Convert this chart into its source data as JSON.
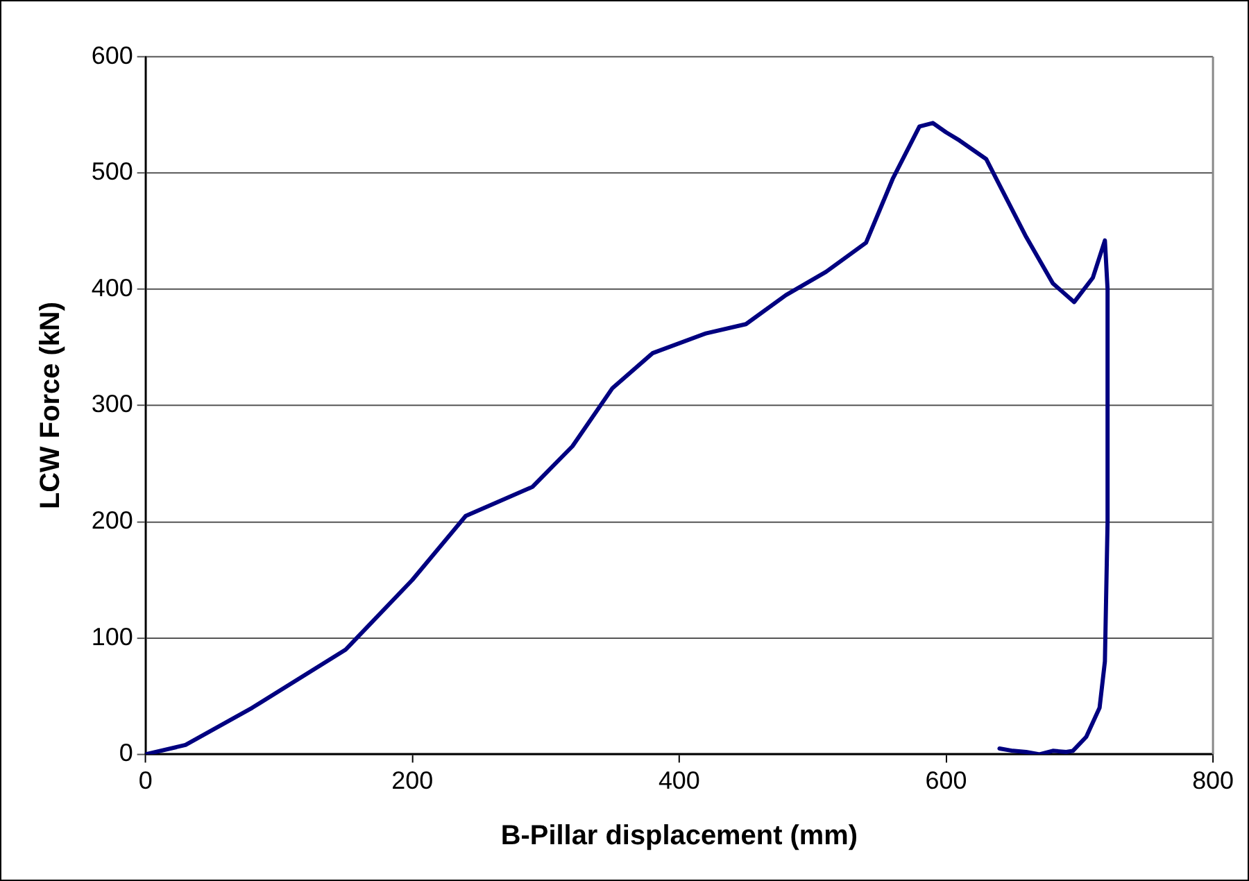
{
  "chart_data": {
    "type": "line",
    "xlabel": "B-Pillar displacement (mm)",
    "ylabel": "LCW Force (kN)",
    "xlim": [
      0,
      800
    ],
    "xticks": [
      0,
      200,
      400,
      600,
      800
    ],
    "ylim": [
      0,
      600
    ],
    "yticks": [
      0,
      100,
      200,
      300,
      400,
      500,
      600
    ],
    "grid": "y",
    "legend": false,
    "marker": "none",
    "line_style": "solid",
    "series": [
      {
        "color": "#000080",
        "x": [
          0,
          30,
          80,
          150,
          200,
          240,
          260,
          290,
          320,
          350,
          380,
          420,
          450,
          480,
          510,
          540,
          560,
          580,
          590,
          600,
          610,
          630,
          660,
          680,
          696,
          710,
          719,
          721,
          721,
          719,
          715,
          705,
          695,
          690,
          680,
          670,
          660,
          650,
          640
        ],
        "values": [
          0,
          8,
          40,
          90,
          150,
          205,
          215,
          230,
          265,
          315,
          345,
          362,
          370,
          395,
          415,
          440,
          495,
          540,
          543,
          535,
          528,
          512,
          445,
          405,
          389,
          410,
          442,
          400,
          200,
          80,
          40,
          15,
          3,
          2,
          3,
          0,
          2,
          3,
          5
        ]
      }
    ]
  }
}
